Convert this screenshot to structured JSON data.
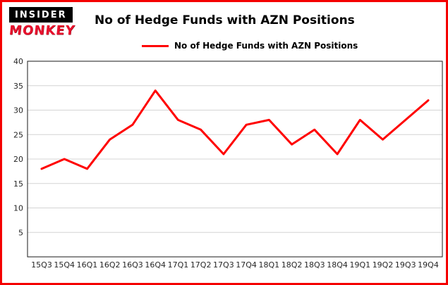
{
  "header": {
    "logo": {
      "line1": "INSIDER",
      "line2": "MONKEY"
    },
    "title": "No of Hedge Funds with AZN Positions"
  },
  "legend": {
    "label": "No of Hedge Funds with AZN Positions",
    "color": "#ff0000"
  },
  "colors": {
    "accent_red": "#ff0000",
    "frame_border": "#f40000",
    "grid": "#d4d4d4",
    "axis_text": "#262626"
  },
  "chart_data": {
    "type": "line",
    "title": "No of Hedge Funds with AZN Positions",
    "categories": [
      "15Q3",
      "15Q4",
      "16Q1",
      "16Q2",
      "16Q3",
      "16Q4",
      "17Q1",
      "17Q2",
      "17Q3",
      "17Q4",
      "18Q1",
      "18Q2",
      "18Q3",
      "18Q4",
      "19Q1",
      "19Q2",
      "19Q3",
      "19Q4"
    ],
    "values": [
      18,
      20,
      18,
      24,
      27,
      34,
      28,
      26,
      21,
      27,
      28,
      23,
      26,
      21,
      28,
      24,
      28,
      32
    ],
    "xlabel": "",
    "ylabel": "",
    "ylim": [
      0,
      40
    ],
    "ytick_step": 5,
    "grid": true,
    "line_color": "#ff0000",
    "line_width": 3,
    "legend_position": "top-left-inside"
  }
}
